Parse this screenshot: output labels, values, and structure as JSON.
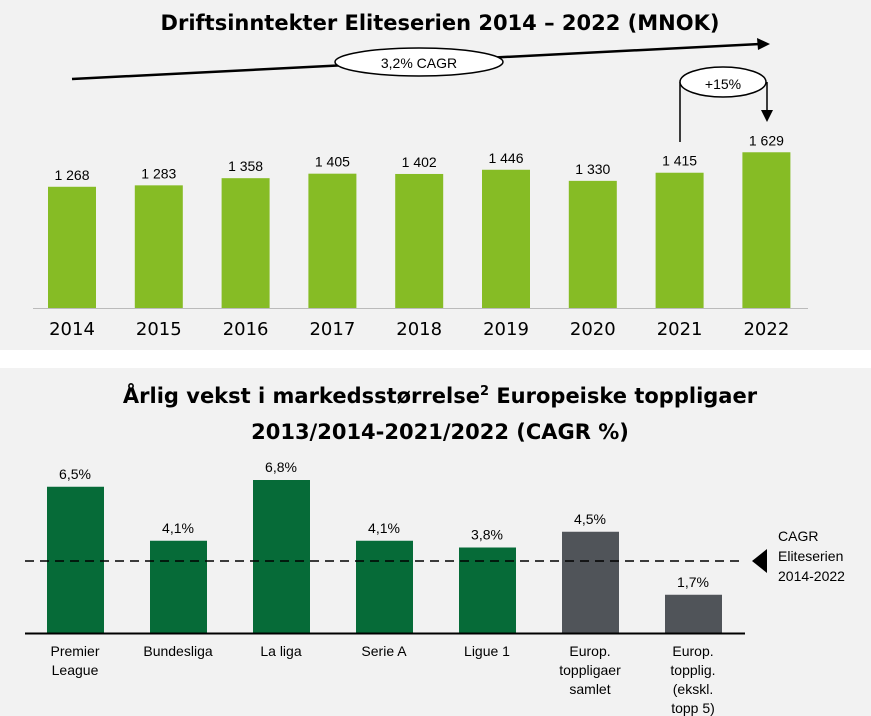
{
  "chart_data": [
    {
      "type": "bar",
      "title": "Driftsinntekter Eliteserien 2014 – 2022 (MNOK)",
      "categories": [
        "2014",
        "2015",
        "2016",
        "2017",
        "2018",
        "2019",
        "2020",
        "2021",
        "2022"
      ],
      "values": [
        1268,
        1283,
        1358,
        1405,
        1402,
        1446,
        1330,
        1415,
        1629
      ],
      "value_labels": [
        "1 268",
        "1 283",
        "1 358",
        "1 405",
        "1 402",
        "1 446",
        "1 330",
        "1 415",
        "1 629"
      ],
      "annotations": {
        "cagr": "3,2% CAGR",
        "growth": "+15%"
      },
      "bar_color": "#86bc25",
      "ylim": [
        0,
        3200
      ],
      "grid": false
    },
    {
      "type": "bar",
      "title_line1": "Årlig vekst i markedsstørrelse",
      "title_sup": "2",
      "title_line1_rest": " Europeiske toppligaer",
      "title_line2": "2013/2014-2021/2022 (CAGR %)",
      "categories": [
        [
          "Premier",
          "League"
        ],
        [
          "Bundesliga"
        ],
        [
          "La liga"
        ],
        [
          "Serie A"
        ],
        [
          "Ligue 1"
        ],
        [
          "Europ.",
          "toppligaer",
          "samlet"
        ],
        [
          "Europ.",
          "topplig.",
          "(ekskl.",
          "topp 5)"
        ]
      ],
      "values": [
        6.5,
        4.1,
        6.8,
        4.1,
        3.8,
        4.5,
        1.7
      ],
      "value_labels": [
        "6,5%",
        "4,1%",
        "6,8%",
        "4,1%",
        "3,8%",
        "4,5%",
        "1,7%"
      ],
      "bar_colors": [
        "#066b38",
        "#066b38",
        "#066b38",
        "#066b38",
        "#066b38",
        "#505459",
        "#505459"
      ],
      "reference_line": {
        "value": 3.2,
        "label": [
          "CAGR",
          "Eliteserien",
          "2014-2022"
        ],
        "style": "dashed"
      },
      "ylim": [
        0,
        7
      ],
      "grid": false
    }
  ]
}
